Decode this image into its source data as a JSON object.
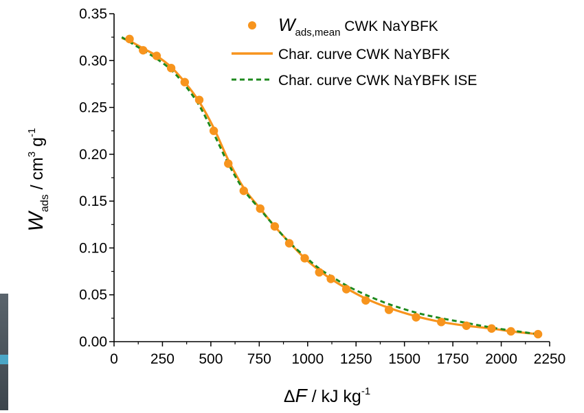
{
  "chart_data": {
    "type": "scatter",
    "xlabel": {
      "symbol_prefix": "Δ",
      "symbol": "F",
      "unit": " / kJ kg",
      "unit_sup": "-1"
    },
    "ylabel": {
      "symbol": "W",
      "symbol_sub": "ads",
      "unit": " / cm",
      "unit_sup1": "3",
      "unit_mid": " g",
      "unit_sup2": "-1"
    },
    "xlim": [
      0,
      2250
    ],
    "ylim": [
      0,
      0.35
    ],
    "x_ticks": [
      "0",
      "250",
      "500",
      "750",
      "1000",
      "1250",
      "1500",
      "1750",
      "2000",
      "2250"
    ],
    "y_ticks": [
      "0.00",
      "0.05",
      "0.10",
      "0.15",
      "0.20",
      "0.25",
      "0.30",
      "0.35"
    ],
    "grid": false,
    "legend_position": "top-right",
    "series": [
      {
        "legend_symbol": "W",
        "legend_sub": "ads,mean",
        "legend_rest": " CWK NaYBFK",
        "kind": "markers",
        "color": "#f7941d",
        "points": [
          [
            80,
            0.323
          ],
          [
            150,
            0.311
          ],
          [
            220,
            0.305
          ],
          [
            295,
            0.292
          ],
          [
            365,
            0.277
          ],
          [
            440,
            0.258
          ],
          [
            515,
            0.225
          ],
          [
            590,
            0.19
          ],
          [
            670,
            0.161
          ],
          [
            755,
            0.142
          ],
          [
            830,
            0.123
          ],
          [
            905,
            0.105
          ],
          [
            985,
            0.089
          ],
          [
            1060,
            0.074
          ],
          [
            1120,
            0.067
          ],
          [
            1200,
            0.056
          ],
          [
            1300,
            0.044
          ],
          [
            1420,
            0.034
          ],
          [
            1560,
            0.026
          ],
          [
            1690,
            0.021
          ],
          [
            1820,
            0.017
          ],
          [
            1950,
            0.014
          ],
          [
            2050,
            0.011
          ],
          [
            2190,
            0.008
          ]
        ]
      },
      {
        "name": "Char. curve CWK NaYBFK",
        "kind": "line",
        "color": "#f7941d",
        "dash": "none",
        "points": [
          [
            40,
            0.324
          ],
          [
            80,
            0.321
          ],
          [
            150,
            0.313
          ],
          [
            220,
            0.305
          ],
          [
            295,
            0.293
          ],
          [
            365,
            0.277
          ],
          [
            440,
            0.256
          ],
          [
            515,
            0.228
          ],
          [
            590,
            0.194
          ],
          [
            670,
            0.164
          ],
          [
            755,
            0.142
          ],
          [
            830,
            0.123
          ],
          [
            905,
            0.106
          ],
          [
            985,
            0.089
          ],
          [
            1060,
            0.076
          ],
          [
            1120,
            0.067
          ],
          [
            1200,
            0.057
          ],
          [
            1300,
            0.046
          ],
          [
            1420,
            0.036
          ],
          [
            1560,
            0.027
          ],
          [
            1690,
            0.021
          ],
          [
            1820,
            0.017
          ],
          [
            1950,
            0.014
          ],
          [
            2050,
            0.011
          ],
          [
            2190,
            0.008
          ]
        ]
      },
      {
        "name": "Char. curve CWK NaYBFK ISE",
        "kind": "line",
        "color": "#1e8a1e",
        "dash": "7,5",
        "points": [
          [
            40,
            0.325
          ],
          [
            80,
            0.32
          ],
          [
            150,
            0.311
          ],
          [
            220,
            0.302
          ],
          [
            295,
            0.29
          ],
          [
            365,
            0.274
          ],
          [
            440,
            0.252
          ],
          [
            515,
            0.222
          ],
          [
            590,
            0.19
          ],
          [
            670,
            0.162
          ],
          [
            755,
            0.141
          ],
          [
            830,
            0.123
          ],
          [
            905,
            0.106
          ],
          [
            985,
            0.091
          ],
          [
            1060,
            0.078
          ],
          [
            1120,
            0.07
          ],
          [
            1200,
            0.06
          ],
          [
            1300,
            0.05
          ],
          [
            1420,
            0.04
          ],
          [
            1560,
            0.031
          ],
          [
            1690,
            0.025
          ],
          [
            1820,
            0.02
          ],
          [
            1950,
            0.015
          ],
          [
            2050,
            0.012
          ],
          [
            2190,
            0.008
          ]
        ]
      }
    ]
  }
}
